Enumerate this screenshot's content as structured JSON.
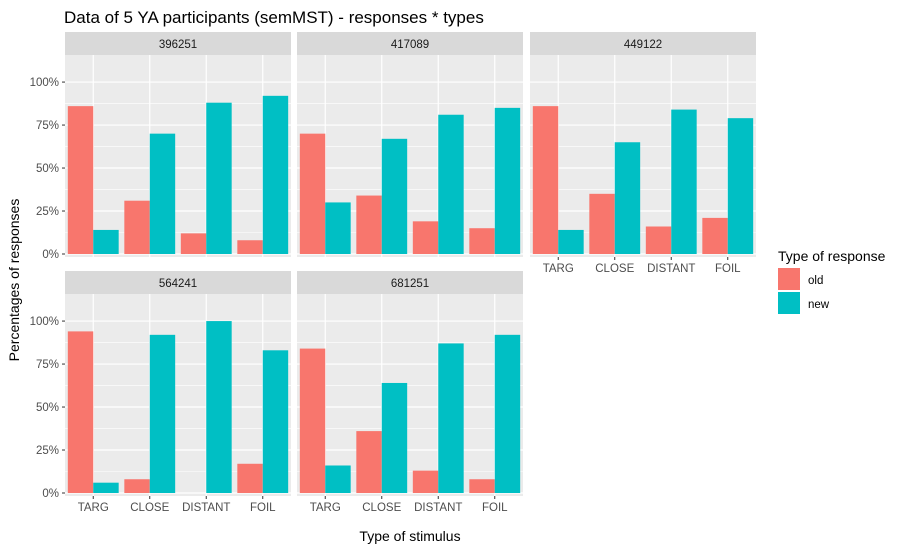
{
  "chart_data": {
    "type": "bar",
    "title": "Data of 5 YA participants (semMST) - responses * types",
    "xlabel": "Type of stimulus",
    "ylabel": "Percentages of responses",
    "ylim": [
      0,
      1.14
    ],
    "yticks": [
      0,
      0.25,
      0.5,
      0.75,
      1.0
    ],
    "ytick_labels": [
      "0%",
      "25%",
      "50%",
      "75%",
      "100%"
    ],
    "categories": [
      "TARG",
      "CLOSE",
      "DISTANT",
      "FOIL"
    ],
    "grid": true,
    "legend": {
      "title": "Type of response",
      "position": "right",
      "entries": [
        {
          "name": "old",
          "color": "#F8766D"
        },
        {
          "name": "new",
          "color": "#00BFC4"
        }
      ]
    },
    "panels": [
      {
        "id": "396251",
        "series": [
          {
            "name": "old",
            "values": [
              0.86,
              0.31,
              0.12,
              0.08
            ]
          },
          {
            "name": "new",
            "values": [
              0.14,
              0.7,
              0.88,
              0.92
            ]
          }
        ]
      },
      {
        "id": "417089",
        "series": [
          {
            "name": "old",
            "values": [
              0.7,
              0.34,
              0.19,
              0.15
            ]
          },
          {
            "name": "new",
            "values": [
              0.3,
              0.67,
              0.81,
              0.85
            ]
          }
        ]
      },
      {
        "id": "449122",
        "series": [
          {
            "name": "old",
            "values": [
              0.86,
              0.35,
              0.16,
              0.21
            ]
          },
          {
            "name": "new",
            "values": [
              0.14,
              0.65,
              0.84,
              0.79
            ]
          }
        ]
      },
      {
        "id": "564241",
        "series": [
          {
            "name": "old",
            "values": [
              0.94,
              0.08,
              0.0,
              0.17
            ]
          },
          {
            "name": "new",
            "values": [
              0.06,
              0.92,
              1.0,
              0.83
            ]
          }
        ]
      },
      {
        "id": "681251",
        "series": [
          {
            "name": "old",
            "values": [
              0.84,
              0.36,
              0.13,
              0.08
            ]
          },
          {
            "name": "new",
            "values": [
              0.16,
              0.64,
              0.87,
              0.92
            ]
          }
        ]
      }
    ]
  }
}
